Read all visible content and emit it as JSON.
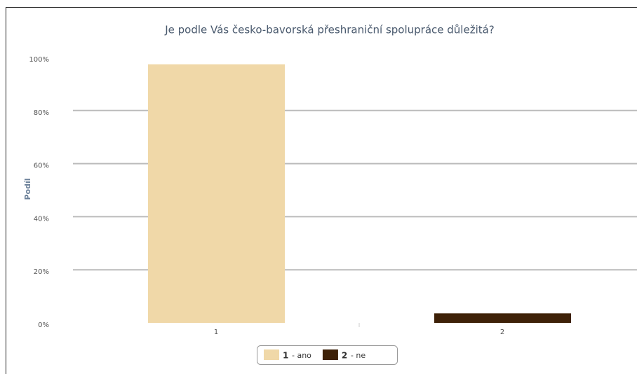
{
  "chart_data": {
    "type": "bar",
    "title": "Je podle Vás česko-bavorská přeshraniční spolupráce důležitá?",
    "y_label": "Podíl",
    "categories": [
      "1",
      "2"
    ],
    "series": [
      {
        "name": "1",
        "legend_text": "- ano",
        "color": "#f0d8a8",
        "values": [
          97.4,
          null
        ]
      },
      {
        "name": "2",
        "legend_text": "- ne",
        "color": "#3e2108",
        "values": [
          null,
          3.6
        ]
      }
    ],
    "ylim": [
      0,
      100
    ],
    "yticks": [
      {
        "value": 0,
        "label": "0%"
      },
      {
        "value": 20,
        "label": "20%"
      },
      {
        "value": 40,
        "label": "40%"
      },
      {
        "value": 60,
        "label": "60%"
      },
      {
        "value": 80,
        "label": "80%"
      },
      {
        "value": 100,
        "label": "100%"
      }
    ],
    "grid": true
  }
}
